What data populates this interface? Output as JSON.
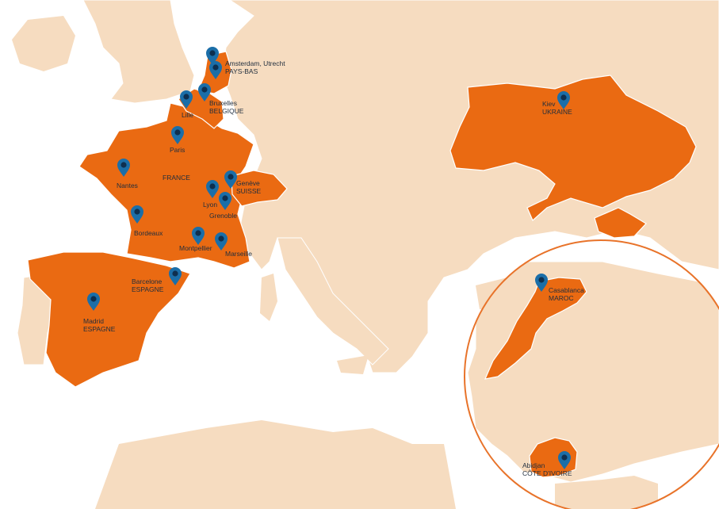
{
  "colors": {
    "sea": "#ffffff",
    "land": "#f6dcc0",
    "border": "#ffffff",
    "highlight": "#ea6a12",
    "pin": "#1b6ea8",
    "pin_dot": "#0e2f4f",
    "circle": "#e8732a",
    "label": "#1f2d3d"
  },
  "highlighted_countries": [
    "Spain",
    "France",
    "Belgium",
    "Netherlands",
    "Switzerland",
    "Ukraine",
    "Morocco",
    "Côte d'Ivoire"
  ],
  "locations": [
    {
      "city": "Amsterdam, Utrecht",
      "country": "PAYS-BAS",
      "pin": "amsterdam"
    },
    {
      "city": "",
      "country": "",
      "pin": "utrecht"
    },
    {
      "city": "Bruxelles",
      "country": "BELGIQUE",
      "pin": "bruxelles"
    },
    {
      "city": "Lille",
      "country": "",
      "pin": "lille"
    },
    {
      "city": "Paris",
      "country": "",
      "pin": "paris"
    },
    {
      "city": "",
      "country": "FRANCE",
      "pin": ""
    },
    {
      "city": "Nantes",
      "country": "",
      "pin": "nantes"
    },
    {
      "city": "Genève",
      "country": "SUISSE",
      "pin": "geneve"
    },
    {
      "city": "Lyon",
      "country": "",
      "pin": "lyon"
    },
    {
      "city": "Grenoble",
      "country": "",
      "pin": "grenoble"
    },
    {
      "city": "Bordeaux",
      "country": "",
      "pin": "bordeaux"
    },
    {
      "city": "Montpellier",
      "country": "",
      "pin": "montpellier"
    },
    {
      "city": "Marseille",
      "country": "",
      "pin": "marseille"
    },
    {
      "city": "Barcelone",
      "country": "ESPAGNE",
      "pin": "barcelone"
    },
    {
      "city": "Madrid",
      "country": "ESPAGNE",
      "pin": "madrid"
    },
    {
      "city": "Kiev",
      "country": "UKRAINE",
      "pin": "kiev"
    },
    {
      "city": "Casablanca",
      "country": "MAROC",
      "pin": "casablanca"
    },
    {
      "city": "Abidjan",
      "country": "CÔTE D'IVOIRE",
      "pin": "abidjan"
    }
  ]
}
